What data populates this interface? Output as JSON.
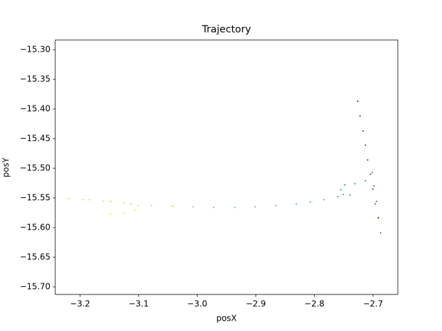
{
  "chart_data": {
    "type": "scatter",
    "title": "Trajectory",
    "x_label": "posX",
    "y_label": "posY",
    "x": [
      -2.726,
      -2.722,
      -2.717,
      -2.713,
      -2.709,
      -2.704,
      -2.7,
      -2.696,
      -2.691,
      -2.687,
      -2.691,
      -2.694,
      -2.698,
      -2.701,
      -2.713,
      -2.731,
      -2.748,
      -2.755,
      -2.751,
      -2.739,
      -2.76,
      -2.784,
      -2.807,
      -2.831,
      -2.866,
      -2.901,
      -2.936,
      -2.972,
      -3.007,
      -3.042,
      -3.078,
      -3.113,
      -3.148,
      -3.184,
      -3.219,
      -3.195,
      -3.16,
      -3.125,
      -3.101,
      -3.107,
      -3.125,
      -3.148
    ],
    "values": [
      -15.387,
      -15.412,
      -15.437,
      -15.461,
      -15.486,
      -15.51,
      -15.535,
      -15.56,
      -15.584,
      -15.609,
      -15.583,
      -15.556,
      -15.53,
      -15.507,
      -15.521,
      -15.526,
      -15.528,
      -15.536,
      -15.544,
      -15.545,
      -15.548,
      -15.553,
      -15.557,
      -15.56,
      -15.563,
      -15.565,
      -15.566,
      -15.566,
      -15.565,
      -15.564,
      -15.563,
      -15.56,
      -15.556,
      -15.553,
      -15.551,
      -15.553,
      -15.556,
      -15.558,
      -15.563,
      -15.571,
      -15.576,
      -15.577
    ],
    "colors": [
      "#440154",
      "#46085c",
      "#471365",
      "#481d6f",
      "#482475",
      "#472e7c",
      "#453781",
      "#424086",
      "#3f4889",
      "#3b528b",
      "#375b8d",
      "#33638d",
      "#306a8e",
      "#2d708e",
      "#2a778e",
      "#277f8e",
      "#25858e",
      "#228c8d",
      "#20928c",
      "#1f998a",
      "#1fa088",
      "#22a785",
      "#28ae80",
      "#31b57b",
      "#3dbc74",
      "#4ac16d",
      "#58c765",
      "#67cc5c",
      "#77d153",
      "#89d548",
      "#9bd93c",
      "#a5db36",
      "#addc30",
      "#b5de2b",
      "#bddf26",
      "#c5e021",
      "#cde11d",
      "#d5e21a",
      "#dde318",
      "#e5e419",
      "#f1e51d",
      "#fde725"
    ],
    "xlim": [
      -3.2424,
      -2.6576
    ],
    "ylim": [
      -15.7128,
      -15.2837
    ],
    "xticks": [
      {
        "value": -3.2,
        "label": "−3.2"
      },
      {
        "value": -3.1,
        "label": "−3.1"
      },
      {
        "value": -3.0,
        "label": "−3.0"
      },
      {
        "value": -2.9,
        "label": "−2.9"
      },
      {
        "value": -2.8,
        "label": "−2.8"
      },
      {
        "value": -2.7,
        "label": "−2.7"
      }
    ],
    "yticks": [
      {
        "value": -15.3,
        "label": "−15.30"
      },
      {
        "value": -15.35,
        "label": "−15.35"
      },
      {
        "value": -15.4,
        "label": "−15.40"
      },
      {
        "value": -15.45,
        "label": "−15.45"
      },
      {
        "value": -15.5,
        "label": "−15.50"
      },
      {
        "value": -15.55,
        "label": "−15.55"
      },
      {
        "value": -15.6,
        "label": "−15.60"
      },
      {
        "value": -15.65,
        "label": "−15.65"
      },
      {
        "value": -15.7,
        "label": "−15.70"
      }
    ],
    "grid": false
  }
}
